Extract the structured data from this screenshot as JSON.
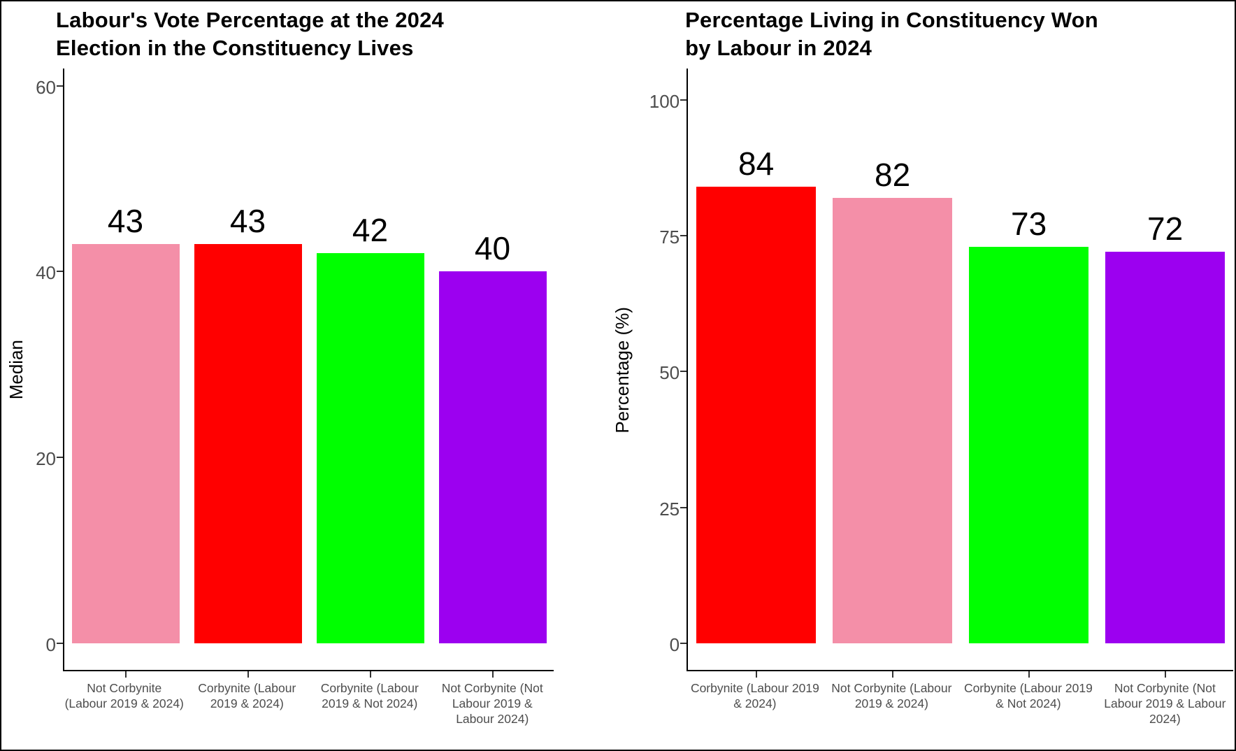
{
  "chart_data": [
    {
      "type": "bar",
      "title_lines": [
        "Labour's Vote Percentage at the 2024",
        "Election in the Constituency Lives"
      ],
      "title": "Labour's Vote Percentage at the 2024 Election in the Constituency Lives",
      "xlabel": "",
      "ylabel": "Median",
      "categories": [
        "Not Corbynite (Labour 2019 & 2024)",
        "Corbynite (Labour 2019 & 2024)",
        "Corbynite (Labour 2019 & Not 2024)",
        "Not Corbynite (Not Labour 2019 & Labour 2024)"
      ],
      "values": [
        43,
        43,
        42,
        40
      ],
      "value_labels": [
        "43",
        "43",
        "42",
        "40"
      ],
      "bar_colors": [
        "#F48FA8",
        "#FF0000",
        "#00FF00",
        "#9C00F0"
      ],
      "yticks": [
        0,
        20,
        40,
        60
      ],
      "ylim": [
        0,
        62
      ],
      "grid": false,
      "legend": false
    },
    {
      "type": "bar",
      "title_lines": [
        "Percentage Living in Constituency Won",
        "by Labour in 2024"
      ],
      "title": "Percentage Living in Constituency Won by Labour in 2024",
      "xlabel": "",
      "ylabel": "Percentage (%)",
      "categories": [
        "Corbynite (Labour 2019 & 2024)",
        "Not Corbynite (Labour 2019 & 2024)",
        "Corbynite (Labour 2019 & Not 2024)",
        "Not Corbynite (Not Labour 2019 & Labour 2024)"
      ],
      "values": [
        84,
        82,
        73,
        72
      ],
      "value_labels": [
        "84",
        "82",
        "73",
        "72"
      ],
      "bar_colors": [
        "#FF0000",
        "#F48FA8",
        "#00FF00",
        "#9C00F0"
      ],
      "yticks": [
        0,
        25,
        50,
        75,
        100
      ],
      "ylim": [
        0,
        106
      ],
      "grid": false,
      "legend": false
    }
  ],
  "style_colors": {
    "axis_line": "#000000",
    "tick_mark": "#333333",
    "tick_label": "#4d4d4d",
    "value_label": "#000000",
    "background": "#ffffff"
  }
}
